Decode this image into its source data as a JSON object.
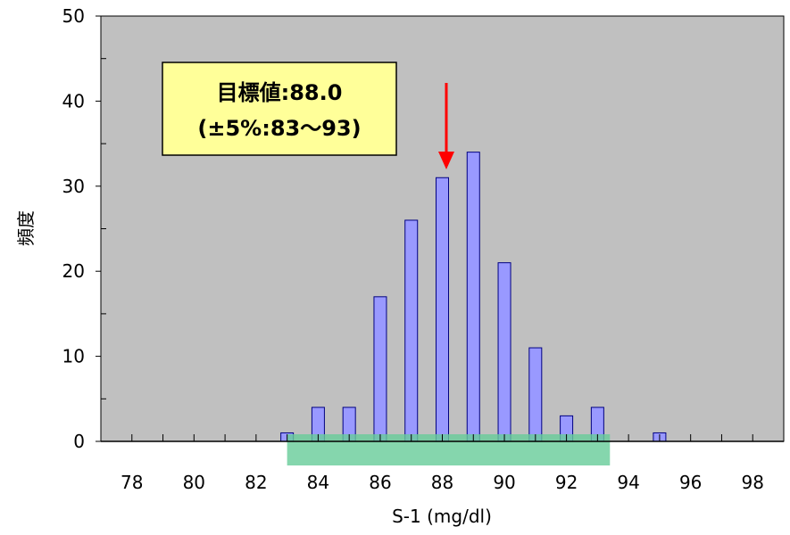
{
  "chart_data": {
    "type": "bar",
    "title": "",
    "xlabel": "S-1 (mg/dl)",
    "ylabel": "頻度",
    "xlim": [
      77,
      99
    ],
    "ylim": [
      0,
      50
    ],
    "x_ticks": [
      78,
      80,
      82,
      84,
      86,
      88,
      90,
      92,
      94,
      96,
      98
    ],
    "y_ticks": [
      0,
      10,
      20,
      30,
      40,
      50
    ],
    "grid": false,
    "bars": [
      {
        "x": 83,
        "value": 1
      },
      {
        "x": 84,
        "value": 4
      },
      {
        "x": 85,
        "value": 4
      },
      {
        "x": 86,
        "value": 17
      },
      {
        "x": 87,
        "value": 26
      },
      {
        "x": 88,
        "value": 31
      },
      {
        "x": 89,
        "value": 34
      },
      {
        "x": 90,
        "value": 21
      },
      {
        "x": 91,
        "value": 11
      },
      {
        "x": 92,
        "value": 3
      },
      {
        "x": 93,
        "value": 4
      },
      {
        "x": 95,
        "value": 1
      }
    ],
    "target_range": [
      83,
      93.4
    ],
    "target_value": 88.0,
    "annotation": {
      "line1": "目標値:88.0",
      "line2": "(±5%:83〜93)"
    },
    "colors": {
      "plot_background": "#c0c0c0",
      "bar_fill": "#9999ff",
      "bar_stroke": "#000080",
      "range_band": "#66cc99",
      "arrow": "#ff0000",
      "annotation_fill": "#ffff99"
    }
  }
}
